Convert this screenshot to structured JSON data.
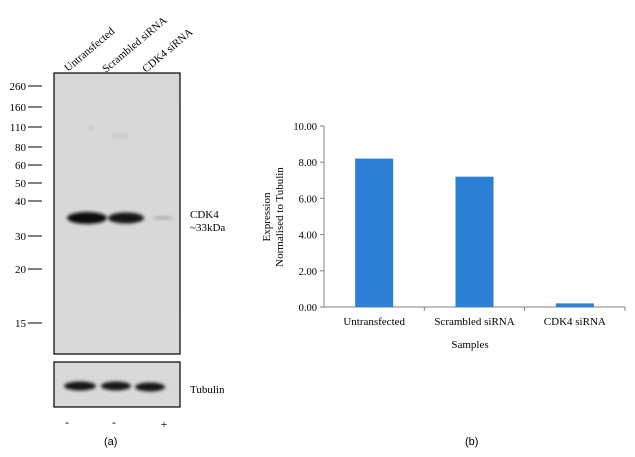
{
  "western_blot": {
    "lane_labels": [
      "Untransfected",
      "Scrambled siRNA",
      "CDK4 siRNA"
    ],
    "mw_markers": [
      "260",
      "160",
      "110",
      "80",
      "60",
      "50",
      "40",
      "30",
      "20",
      "15"
    ],
    "band_label_line1": "CDK4",
    "band_label_line2": "~33kDa",
    "loading_control_label": "Tubulin",
    "treatment_marks": [
      "-",
      "-",
      "+"
    ],
    "panel_label": "(a)"
  },
  "chart_data": {
    "type": "bar",
    "categories": [
      "Untransfected",
      "Scrambled siRNA",
      "CDK4 siRNA"
    ],
    "values": [
      8.2,
      7.2,
      0.2
    ],
    "title": "",
    "xlabel": "Samples",
    "ylabel_line1": "Expression",
    "ylabel_line2": "Normalised to Tubulin",
    "ylim": [
      0,
      10
    ],
    "yticks": [
      "0.00",
      "2.00",
      "4.00",
      "6.00",
      "8.00",
      "10.00"
    ],
    "grid": false,
    "bar_color": "#2b7fd4",
    "panel_label": "(b)"
  }
}
